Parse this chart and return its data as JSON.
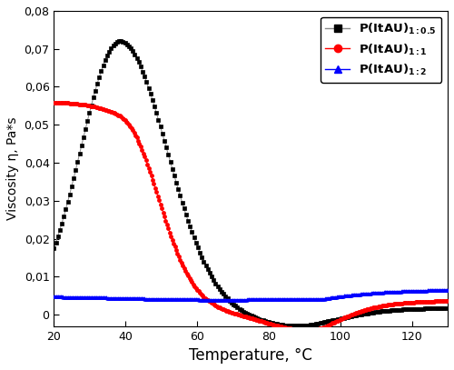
{
  "title": "",
  "xlabel": "Temperature, °C",
  "ylabel": "Viscosity η, Pa*s",
  "xlim": [
    20,
    130
  ],
  "ylim": [
    -0.003,
    0.08
  ],
  "yticks": [
    0.0,
    0.01,
    0.02,
    0.03,
    0.04,
    0.05,
    0.06,
    0.07,
    0.08
  ],
  "ytick_labels": [
    "0",
    "0,01",
    "0,02",
    "0,03",
    "0,04",
    "0,05",
    "0,06",
    "0,07",
    "0,08"
  ],
  "xticks": [
    20,
    40,
    60,
    80,
    100,
    120
  ],
  "series": [
    {
      "label_main": "P(ItAU)",
      "label_sub": "1:0.5",
      "color": "black",
      "marker": "s",
      "line_color": "#888888"
    },
    {
      "label_main": "P(ItAU)",
      "label_sub": "1:1",
      "color": "red",
      "marker": "o",
      "line_color": "red"
    },
    {
      "label_main": "P(ItAU)",
      "label_sub": "1:2",
      "color": "blue",
      "marker": "^",
      "line_color": "blue"
    }
  ],
  "figsize": [
    5.0,
    4.07
  ],
  "dpi": 100
}
